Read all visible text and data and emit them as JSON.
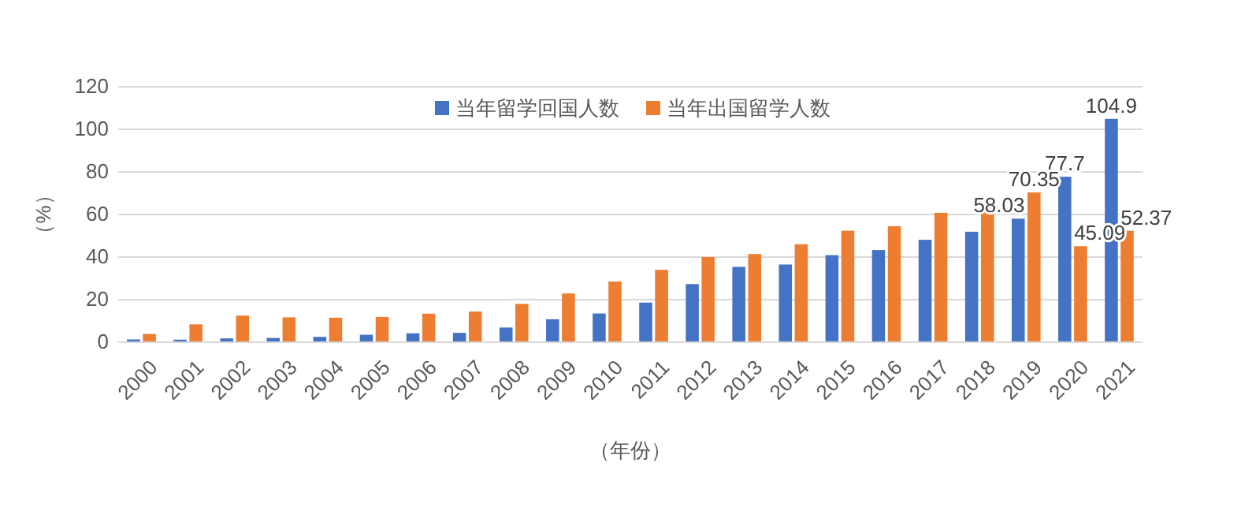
{
  "chart_data": {
    "type": "bar",
    "xlabel": "（年份）",
    "ylabel": "（%）",
    "categories": [
      "2000",
      "2001",
      "2002",
      "2003",
      "2004",
      "2005",
      "2006",
      "2007",
      "2008",
      "2009",
      "2010",
      "2011",
      "2012",
      "2013",
      "2014",
      "2015",
      "2016",
      "2017",
      "2018",
      "2019",
      "2020",
      "2021"
    ],
    "series": [
      {
        "name": "当年留学回国人数",
        "color": "#4472c4",
        "values": [
          1.3,
          1.2,
          1.8,
          2.0,
          2.5,
          3.5,
          4.2,
          4.4,
          6.9,
          10.8,
          13.5,
          18.6,
          27.3,
          35.4,
          36.5,
          40.9,
          43.3,
          48.1,
          51.9,
          58.03,
          77.7,
          104.9
        ],
        "value_labels": [
          null,
          null,
          null,
          null,
          null,
          null,
          null,
          null,
          null,
          null,
          null,
          null,
          null,
          null,
          null,
          null,
          null,
          null,
          null,
          "58.03",
          "77.7",
          "104.9"
        ]
      },
      {
        "name": "当年出国留学人数",
        "color": "#ed7d31",
        "values": [
          3.9,
          8.4,
          12.5,
          11.7,
          11.5,
          11.9,
          13.4,
          14.4,
          18.0,
          22.9,
          28.5,
          34.0,
          40.0,
          41.4,
          46.0,
          52.4,
          54.5,
          60.8,
          66.2,
          70.35,
          45.09,
          52.37
        ],
        "value_labels": [
          null,
          null,
          null,
          null,
          null,
          null,
          null,
          null,
          null,
          null,
          null,
          null,
          null,
          null,
          null,
          null,
          null,
          null,
          null,
          "70.35",
          "45.09",
          "52.37"
        ]
      }
    ],
    "ylim": [
      0,
      120
    ],
    "yticks": [
      0,
      20,
      40,
      60,
      80,
      100,
      120
    ],
    "grid": "y",
    "legend": "top"
  }
}
